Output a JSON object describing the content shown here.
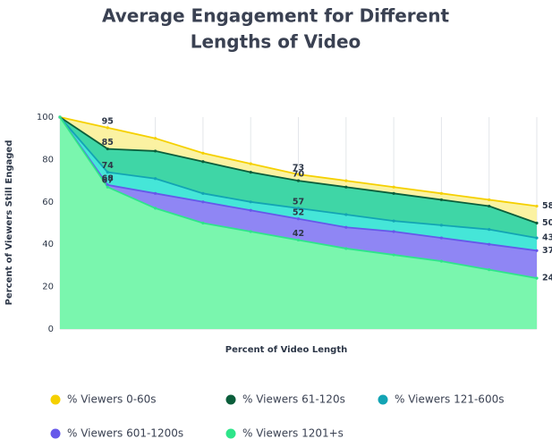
{
  "chart_data": {
    "type": "area",
    "title": [
      "Average Engagement for Different",
      "Lengths of Video"
    ],
    "x_label": "Percent of Video Length",
    "y_label": "Percent of Viewers Still Engaged",
    "categories": [
      null,
      null,
      null,
      null,
      null,
      null,
      null,
      null,
      null,
      null,
      null
    ],
    "ylim": [
      0,
      100
    ],
    "yticks": [
      0,
      20,
      40,
      60,
      80,
      100
    ],
    "grid": true,
    "data_labels_at": [
      1,
      5,
      10
    ],
    "series": [
      {
        "name": "% Viewers 0-60s",
        "color": "#f5d000",
        "fill": "#fbf2a2",
        "values": [
          100,
          95,
          90,
          83,
          78,
          73,
          70,
          67,
          64,
          61,
          58
        ]
      },
      {
        "name": "% Viewers 61-120s",
        "color": "#0b5e3b",
        "fill": "#3fd6a6",
        "values": [
          100,
          85,
          84,
          79,
          74,
          70,
          67,
          64,
          61,
          58,
          50
        ]
      },
      {
        "name": "% Viewers 121-600s",
        "color": "#13a4b4",
        "fill": "#45e6d8",
        "values": [
          100,
          74,
          71,
          64,
          60,
          57,
          54,
          51,
          49,
          47,
          43
        ]
      },
      {
        "name": "% Viewers 601-1200s",
        "color": "#6658ea",
        "fill": "#8f86f4",
        "values": [
          100,
          68,
          64,
          60,
          56,
          52,
          48,
          46,
          43,
          40,
          37
        ]
      },
      {
        "name": "% Viewers 1201+s",
        "color": "#2ee58a",
        "fill": "#7af6ae",
        "values": [
          100,
          67,
          57,
          50,
          46,
          42,
          38,
          35,
          32,
          28,
          24
        ]
      }
    ]
  }
}
